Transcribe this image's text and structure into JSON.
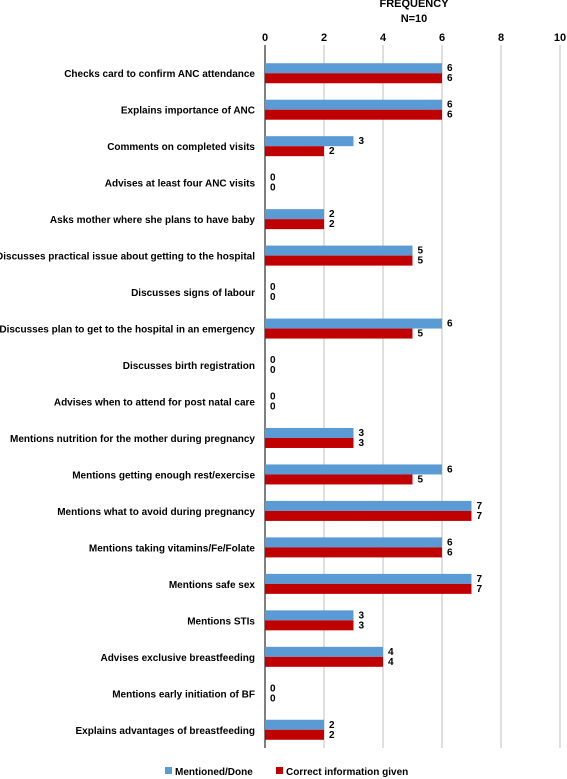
{
  "chart_data": {
    "type": "bar",
    "orientation": "horizontal",
    "title": "FREQUENCY",
    "subtitle": "N=10",
    "xlim": [
      0,
      10
    ],
    "x_ticks": [
      0,
      2,
      4,
      6,
      8,
      10
    ],
    "grid": true,
    "legend_position": "bottom",
    "categories": [
      "Checks card to confirm ANC attendance",
      "Explains importance of ANC",
      "Comments on completed visits",
      "Advises at least four ANC visits",
      "Asks mother where she plans to have baby",
      "Discusses practical issue about getting to the hospital",
      "Discusses signs of labour",
      "Discusses plan to get to the hospital in an emergency",
      "Discusses birth registration",
      "Advises when to attend for post natal care",
      "Mentions nutrition for the mother during pregnancy",
      "Mentions getting enough rest/exercise",
      "Mentions what to avoid during pregnancy",
      "Mentions taking vitamins/Fe/Folate",
      "Mentions safe sex",
      "Mentions STIs",
      "Advises exclusive breastfeeding",
      "Mentions early initiation of BF",
      "Explains advantages of breastfeeding"
    ],
    "series": [
      {
        "name": "Mentioned/Done",
        "color": "#5b9bd5",
        "values": [
          6,
          6,
          3,
          0,
          2,
          5,
          0,
          6,
          0,
          0,
          3,
          6,
          7,
          6,
          7,
          3,
          4,
          0,
          2
        ]
      },
      {
        "name": "Correct information given",
        "color": "#c00000",
        "values": [
          6,
          6,
          2,
          0,
          2,
          5,
          0,
          5,
          0,
          0,
          3,
          5,
          7,
          6,
          7,
          3,
          4,
          0,
          2
        ]
      }
    ]
  }
}
